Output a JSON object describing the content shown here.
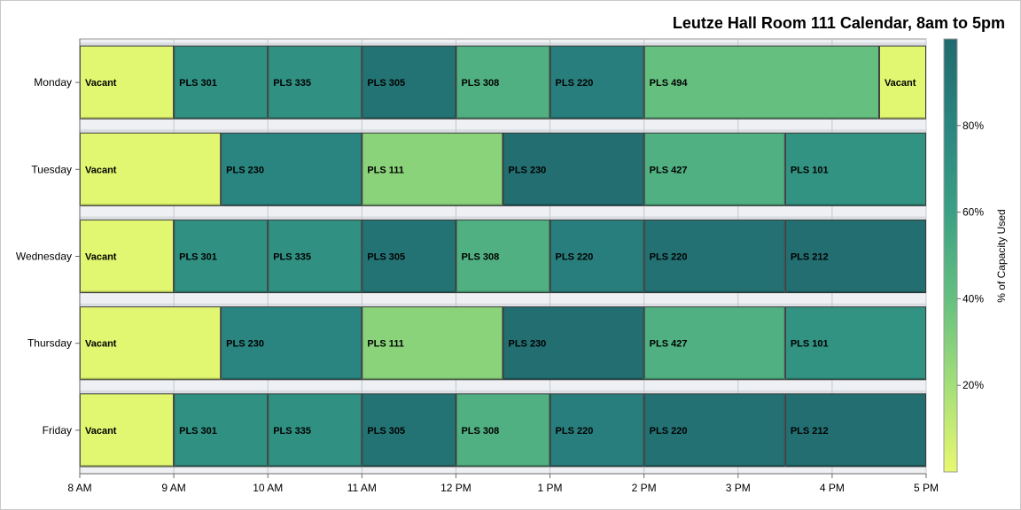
{
  "chart_data": {
    "type": "bar",
    "orientation": "horizontal-timeline",
    "title": "Leutze Hall Room 111 Calendar, 8am to 5pm",
    "x_axis": {
      "ticks": [
        "8 AM",
        "9 AM",
        "10 AM",
        "11 AM",
        "12 PM",
        "1 PM",
        "2 PM",
        "3 PM",
        "4 PM",
        "5 PM"
      ],
      "range_hours": [
        8,
        17
      ]
    },
    "y_categories": [
      "Monday",
      "Tuesday",
      "Wednesday",
      "Thursday",
      "Friday"
    ],
    "color_legend": {
      "title": "% of Capacity Used",
      "ticks": [
        "20%",
        "40%",
        "60%",
        "80%"
      ],
      "range": [
        0,
        100
      ],
      "colors": [
        "#e8f870",
        "#a4df78",
        "#65c080",
        "#3aa084",
        "#2a8580",
        "#206a6e"
      ]
    },
    "series": [
      {
        "day": "Monday",
        "segments": [
          {
            "label": "Vacant",
            "start": 8,
            "end": 9,
            "capacity": 2
          },
          {
            "label": "PLS 301",
            "start": 9,
            "end": 10,
            "capacity": 72
          },
          {
            "label": "PLS 335",
            "start": 10,
            "end": 11,
            "capacity": 72
          },
          {
            "label": "PLS 305",
            "start": 11,
            "end": 12,
            "capacity": 93
          },
          {
            "label": "PLS 308",
            "start": 12,
            "end": 13,
            "capacity": 50
          },
          {
            "label": "PLS 220",
            "start": 13,
            "end": 14,
            "capacity": 85
          },
          {
            "label": "PLS 494",
            "start": 14,
            "end": 16.5,
            "capacity": 40
          },
          {
            "label": "Vacant",
            "start": 16.5,
            "end": 17,
            "capacity": 2
          }
        ]
      },
      {
        "day": "Tuesday",
        "segments": [
          {
            "label": "Vacant",
            "start": 8,
            "end": 9.5,
            "capacity": 2
          },
          {
            "label": "PLS 230",
            "start": 9.5,
            "end": 11,
            "capacity": 80
          },
          {
            "label": "PLS 111",
            "start": 11,
            "end": 12.5,
            "capacity": 28
          },
          {
            "label": "PLS 230",
            "start": 12.5,
            "end": 14,
            "capacity": 97
          },
          {
            "label": "PLS 427",
            "start": 14,
            "end": 15.5,
            "capacity": 50
          },
          {
            "label": "PLS 101",
            "start": 15.5,
            "end": 17,
            "capacity": 70
          }
        ]
      },
      {
        "day": "Wednesday",
        "segments": [
          {
            "label": "Vacant",
            "start": 8,
            "end": 9,
            "capacity": 2
          },
          {
            "label": "PLS 301",
            "start": 9,
            "end": 10,
            "capacity": 72
          },
          {
            "label": "PLS 335",
            "start": 10,
            "end": 11,
            "capacity": 72
          },
          {
            "label": "PLS 305",
            "start": 11,
            "end": 12,
            "capacity": 93
          },
          {
            "label": "PLS 308",
            "start": 12,
            "end": 13,
            "capacity": 50
          },
          {
            "label": "PLS 220",
            "start": 13,
            "end": 14,
            "capacity": 85
          },
          {
            "label": "PLS 220",
            "start": 14,
            "end": 15.5,
            "capacity": 95
          },
          {
            "label": "PLS 212",
            "start": 15.5,
            "end": 17,
            "capacity": 97
          }
        ]
      },
      {
        "day": "Thursday",
        "segments": [
          {
            "label": "Vacant",
            "start": 8,
            "end": 9.5,
            "capacity": 2
          },
          {
            "label": "PLS 230",
            "start": 9.5,
            "end": 11,
            "capacity": 80
          },
          {
            "label": "PLS 111",
            "start": 11,
            "end": 12.5,
            "capacity": 28
          },
          {
            "label": "PLS 230",
            "start": 12.5,
            "end": 14,
            "capacity": 97
          },
          {
            "label": "PLS 427",
            "start": 14,
            "end": 15.5,
            "capacity": 50
          },
          {
            "label": "PLS 101",
            "start": 15.5,
            "end": 17,
            "capacity": 70
          }
        ]
      },
      {
        "day": "Friday",
        "segments": [
          {
            "label": "Vacant",
            "start": 8,
            "end": 9,
            "capacity": 2
          },
          {
            "label": "PLS 301",
            "start": 9,
            "end": 10,
            "capacity": 72
          },
          {
            "label": "PLS 335",
            "start": 10,
            "end": 11,
            "capacity": 72
          },
          {
            "label": "PLS 305",
            "start": 11,
            "end": 12,
            "capacity": 93
          },
          {
            "label": "PLS 308",
            "start": 12,
            "end": 13,
            "capacity": 50
          },
          {
            "label": "PLS 220",
            "start": 13,
            "end": 14,
            "capacity": 85
          },
          {
            "label": "PLS 220",
            "start": 14,
            "end": 15.5,
            "capacity": 95
          },
          {
            "label": "PLS 212",
            "start": 15.5,
            "end": 17,
            "capacity": 97
          }
        ]
      }
    ]
  }
}
